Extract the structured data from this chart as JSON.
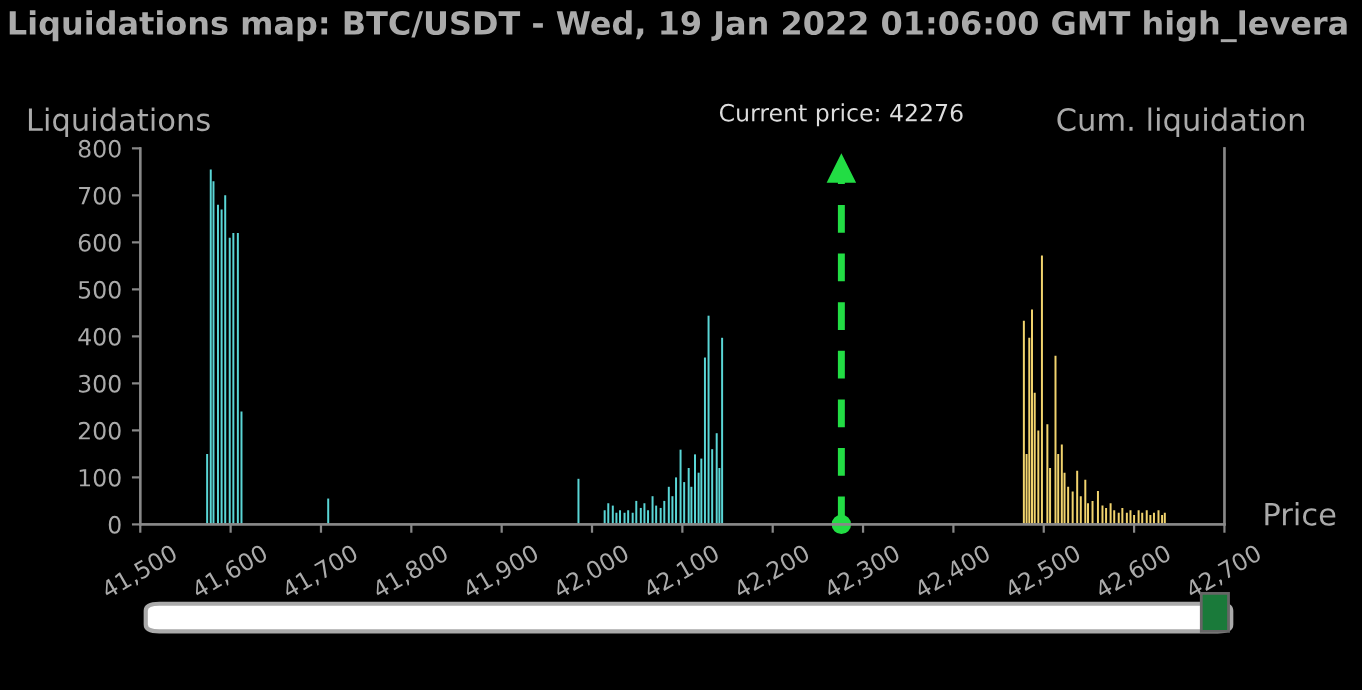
{
  "chart_data": {
    "type": "bar",
    "title": "Liquidations map: BTC/USDT - Wed, 19 Jan 2022 01:06:00 GMT high_levera",
    "xlabel": "Price",
    "ylabel": "Liquidations",
    "y2label": "Cum. liquidation",
    "series": [
      {
        "color": "#5ad6d6",
        "x": [
          41574,
          41578,
          41581,
          41586,
          41590,
          41594,
          41599,
          41603,
          41608,
          41612,
          41708,
          41985,
          42014,
          42018,
          42023,
          42027,
          42031,
          42036,
          42040,
          42045,
          42049,
          42054,
          42058,
          42062,
          42067,
          42071,
          42076,
          42080,
          42085,
          42089,
          42093,
          42098,
          42102,
          42107,
          42110,
          42114,
          42118,
          42121,
          42125,
          42129,
          42133,
          42138,
          42141,
          42144
        ],
        "values": [
          150,
          755,
          730,
          680,
          670,
          700,
          610,
          620,
          620,
          240,
          55,
          97,
          30,
          45,
          40,
          25,
          30,
          25,
          30,
          25,
          50,
          35,
          45,
          30,
          60,
          40,
          35,
          50,
          80,
          60,
          100,
          159,
          90,
          120,
          80,
          149,
          110,
          140,
          355,
          444,
          160,
          194,
          120,
          397
        ]
      },
      {
        "color": "#f2d46e",
        "x": [
          42478,
          42481,
          42484,
          42487,
          42490,
          42494,
          42498,
          42504,
          42507,
          42513,
          42516,
          42520,
          42523,
          42527,
          42532,
          42537,
          42541,
          42546,
          42549,
          42554,
          42560,
          42565,
          42569,
          42574,
          42578,
          42583,
          42587,
          42592,
          42596,
          42600,
          42605,
          42609,
          42614,
          42618,
          42622,
          42627,
          42631,
          42634
        ],
        "values": [
          433,
          150,
          397,
          457,
          280,
          200,
          572,
          213,
          120,
          359,
          150,
          170,
          110,
          80,
          70,
          114,
          60,
          95,
          45,
          50,
          71,
          40,
          35,
          45,
          30,
          25,
          35,
          25,
          30,
          20,
          30,
          25,
          30,
          20,
          25,
          30,
          20,
          25
        ]
      }
    ],
    "xlim": [
      41500,
      42700
    ],
    "xticks": [
      {
        "value": 41500,
        "label": "41,500"
      },
      {
        "value": 41600,
        "label": "41,600"
      },
      {
        "value": 41700,
        "label": "41,700"
      },
      {
        "value": 41800,
        "label": "41,800"
      },
      {
        "value": 41900,
        "label": "41,900"
      },
      {
        "value": 42000,
        "label": "42,000"
      },
      {
        "value": 42100,
        "label": "42,100"
      },
      {
        "value": 42200,
        "label": "42,200"
      },
      {
        "value": 42300,
        "label": "42,300"
      },
      {
        "value": 42400,
        "label": "42,400"
      },
      {
        "value": 42500,
        "label": "42,500"
      },
      {
        "value": 42600,
        "label": "42,600"
      },
      {
        "value": 42700,
        "label": "42,700"
      }
    ],
    "ylim": [
      0,
      800
    ],
    "yticks": [
      0,
      100,
      200,
      300,
      400,
      500,
      600,
      700,
      800
    ],
    "ref_lines": [
      {
        "axis": "x",
        "value": 42276,
        "label": "Current price: 42276",
        "color": "#22dd44",
        "line_style": "dashed"
      }
    ],
    "grid": false
  }
}
